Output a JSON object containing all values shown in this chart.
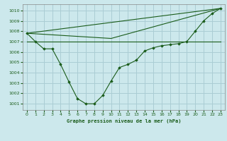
{
  "background_color": "#cce8ec",
  "grid_color": "#aacdd4",
  "line_color": "#1a5c1a",
  "marker_color": "#1a5c1a",
  "title": "Graphe pression niveau de la mer (hPa)",
  "xlim": [
    -0.5,
    23.5
  ],
  "ylim": [
    1000.4,
    1010.6
  ],
  "yticks": [
    1001,
    1002,
    1003,
    1004,
    1005,
    1006,
    1007,
    1008,
    1009,
    1010
  ],
  "xticks": [
    0,
    1,
    2,
    3,
    4,
    5,
    6,
    7,
    8,
    9,
    10,
    11,
    12,
    13,
    14,
    15,
    16,
    17,
    18,
    19,
    20,
    21,
    22,
    23
  ],
  "line1_x": [
    0,
    1,
    2,
    3,
    4,
    5,
    6,
    7,
    8,
    9,
    10,
    11,
    12,
    13,
    14,
    15,
    16,
    17,
    18,
    19,
    20,
    21,
    22,
    23
  ],
  "line1_y": [
    1007.8,
    1007.0,
    1006.3,
    1006.3,
    1004.8,
    1003.1,
    1001.5,
    1001.0,
    1001.0,
    1001.8,
    1003.2,
    1004.5,
    1004.8,
    1005.2,
    1006.1,
    1006.4,
    1006.6,
    1006.7,
    1006.8,
    1007.0,
    1008.0,
    1009.0,
    1009.7,
    1010.2
  ],
  "line2_x": [
    0,
    23
  ],
  "line2_y": [
    1007.8,
    1010.2
  ],
  "line3_x": [
    0,
    23
  ],
  "line3_y": [
    1007.0,
    1007.0
  ],
  "line4_x": [
    0,
    10,
    23
  ],
  "line4_y": [
    1007.8,
    1007.3,
    1010.2
  ]
}
